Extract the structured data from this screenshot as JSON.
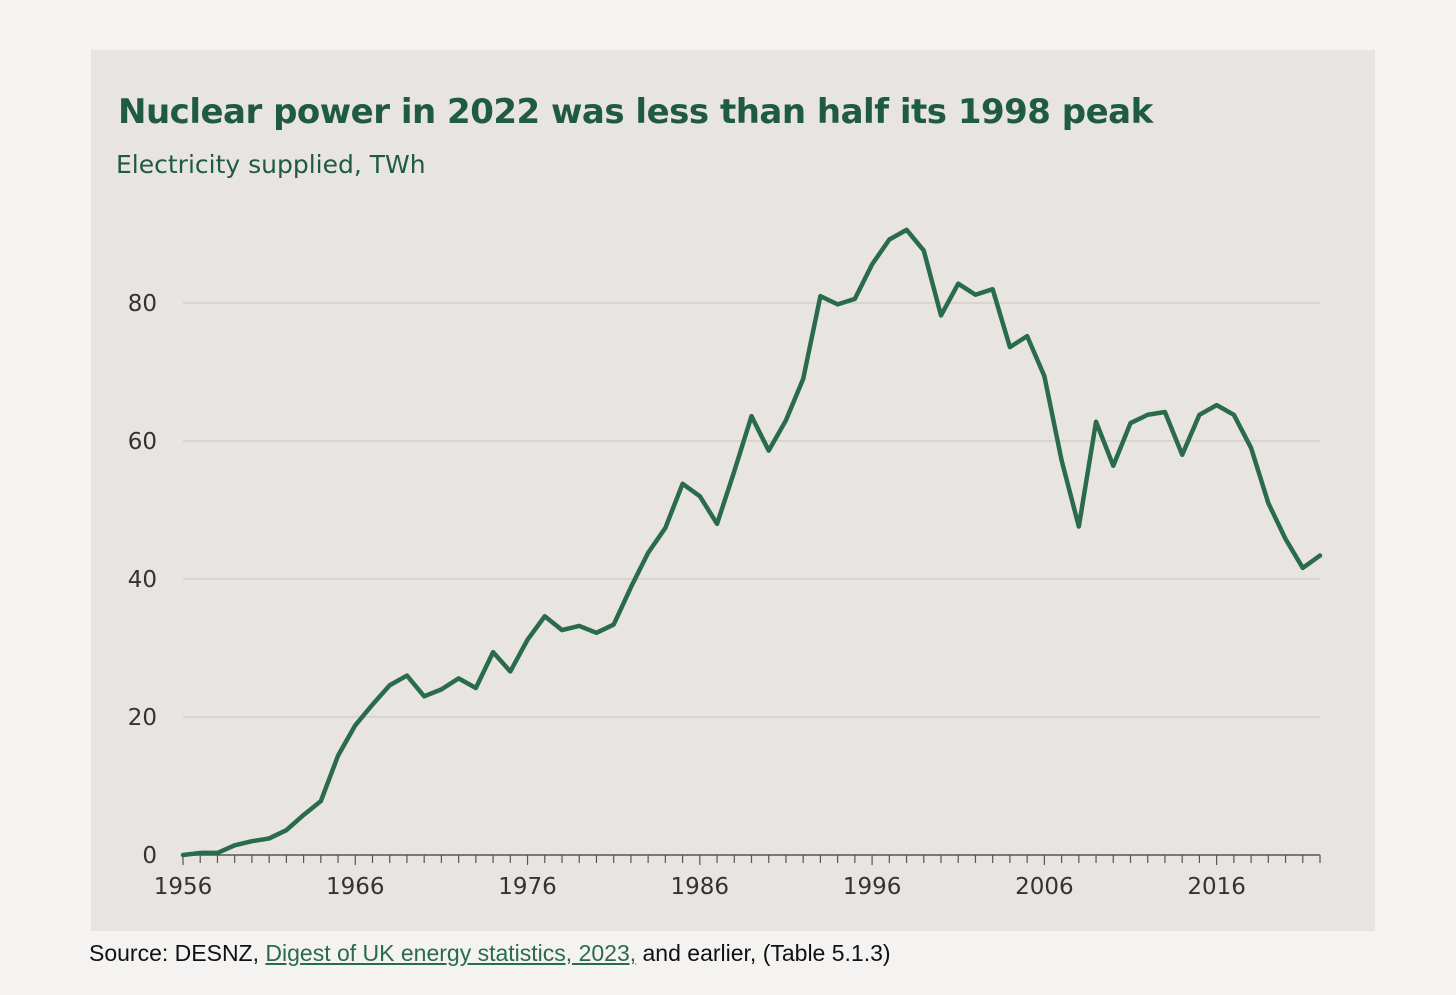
{
  "source": {
    "prefix": "Source: DESNZ, ",
    "link_text": "Digest of UK energy statistics, 2023,",
    "suffix": " and earlier, (Table 5.1.3)"
  },
  "colors": {
    "line": "#2a6b4c",
    "title": "#1e5b40",
    "panel": "#e8e4e1",
    "gridline": "#d3cfcb",
    "axis_text": "#333333"
  },
  "chart_data": {
    "type": "line",
    "title": "Nuclear power in 2022 was less than half its 1998 peak",
    "subtitle": "Electricity supplied, TWh",
    "xlabel": "",
    "ylabel": "",
    "xlim": [
      1956,
      2022
    ],
    "ylim": [
      0,
      80
    ],
    "yticks": [
      0,
      20,
      40,
      60,
      80
    ],
    "xticks": [
      1956,
      1966,
      1976,
      1986,
      1996,
      2006,
      2016
    ],
    "grid": true,
    "legend": "none",
    "x": [
      1956,
      1957,
      1958,
      1959,
      1960,
      1961,
      1962,
      1963,
      1964,
      1965,
      1966,
      1967,
      1968,
      1969,
      1970,
      1971,
      1972,
      1973,
      1974,
      1975,
      1976,
      1977,
      1978,
      1979,
      1980,
      1981,
      1982,
      1983,
      1984,
      1985,
      1986,
      1987,
      1988,
      1989,
      1990,
      1991,
      1992,
      1993,
      1994,
      1995,
      1996,
      1997,
      1998,
      1999,
      2000,
      2001,
      2002,
      2003,
      2004,
      2005,
      2006,
      2007,
      2008,
      2009,
      2010,
      2011,
      2012,
      2013,
      2014,
      2015,
      2016,
      2017,
      2018,
      2019,
      2020,
      2021,
      2022
    ],
    "series": [
      {
        "values": [
          0,
          0.3,
          0.3,
          1.4,
          2.0,
          2.4,
          3.6,
          5.8,
          7.8,
          14.4,
          18.8,
          21.8,
          24.6,
          26.0,
          23.0,
          24.0,
          25.6,
          24.2,
          29.4,
          26.6,
          31.2,
          34.6,
          32.6,
          33.2,
          32.2,
          33.4,
          38.8,
          43.8,
          47.4,
          53.8,
          52.0,
          48.0,
          55.6,
          63.6,
          58.6,
          63.0,
          69.0,
          81.0,
          79.8,
          80.6,
          85.6,
          89.2,
          90.6,
          87.6,
          78.2,
          82.8,
          81.2,
          82.0,
          73.6,
          75.2,
          69.4,
          57.2,
          47.6,
          62.8,
          56.4,
          62.6,
          63.8,
          64.2,
          58.0,
          63.8,
          65.2,
          63.8,
          59.0,
          51.0,
          45.8,
          41.6,
          43.4
        ]
      }
    ]
  }
}
